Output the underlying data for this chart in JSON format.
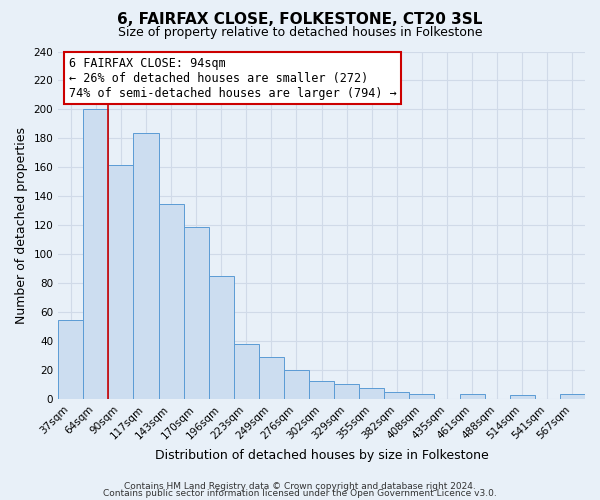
{
  "title": "6, FAIRFAX CLOSE, FOLKESTONE, CT20 3SL",
  "subtitle": "Size of property relative to detached houses in Folkestone",
  "xlabel": "Distribution of detached houses by size in Folkestone",
  "ylabel": "Number of detached properties",
  "bin_labels": [
    "37sqm",
    "64sqm",
    "90sqm",
    "117sqm",
    "143sqm",
    "170sqm",
    "196sqm",
    "223sqm",
    "249sqm",
    "276sqm",
    "302sqm",
    "329sqm",
    "355sqm",
    "382sqm",
    "408sqm",
    "435sqm",
    "461sqm",
    "488sqm",
    "514sqm",
    "541sqm",
    "567sqm"
  ],
  "bar_heights": [
    55,
    200,
    162,
    184,
    135,
    119,
    85,
    38,
    29,
    20,
    13,
    11,
    8,
    5,
    4,
    0,
    4,
    0,
    3,
    0,
    4
  ],
  "bar_color": "#ccddf0",
  "bar_edge_color": "#5b9bd5",
  "vline_x_index": 2,
  "vline_color": "#cc0000",
  "annotation_title": "6 FAIRFAX CLOSE: 94sqm",
  "annotation_line1": "← 26% of detached houses are smaller (272)",
  "annotation_line2": "74% of semi-detached houses are larger (794) →",
  "annotation_box_facecolor": "#ffffff",
  "annotation_box_edgecolor": "#cc0000",
  "ylim": [
    0,
    240
  ],
  "yticks": [
    0,
    20,
    40,
    60,
    80,
    100,
    120,
    140,
    160,
    180,
    200,
    220,
    240
  ],
  "footnote1": "Contains HM Land Registry data © Crown copyright and database right 2024.",
  "footnote2": "Contains public sector information licensed under the Open Government Licence v3.0.",
  "background_color": "#e8f0f8",
  "plot_bg_color": "#e8f0f8",
  "grid_color": "#d0dae8",
  "title_fontsize": 11,
  "subtitle_fontsize": 9,
  "axis_label_fontsize": 9,
  "tick_fontsize": 7.5,
  "annotation_fontsize": 8.5,
  "footnote_fontsize": 6.5
}
